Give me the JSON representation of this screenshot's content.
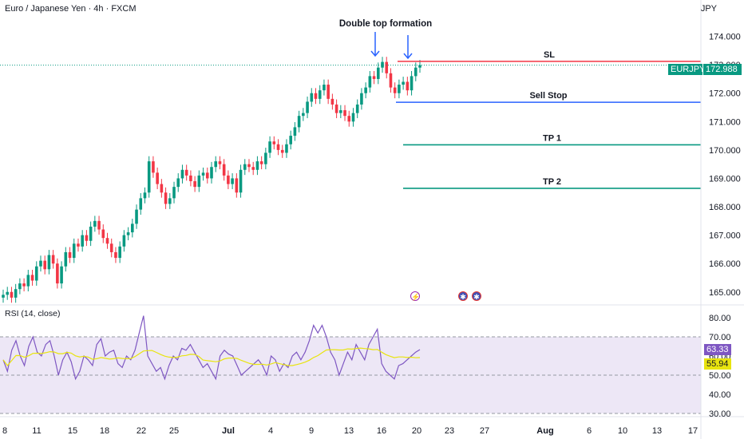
{
  "header": {
    "symbol_title": "Euro / Japanese Yen · 4h · FXCM",
    "currency": "JPY"
  },
  "rsi": {
    "title": "RSI (14, close)",
    "value_label": "63.33",
    "ma_label": "55.94",
    "y_ticks": [
      "80.00",
      "70.00",
      "60.00",
      "50.00",
      "40.00",
      "30.00"
    ],
    "upper_band": 70,
    "lower_band": 30,
    "middle_band": 50
  },
  "price_tags": {
    "symbol": "EURJPY",
    "last": "172.988"
  },
  "events": {
    "bolt": "⚡",
    "flag1": "✱",
    "flag2": "✱"
  },
  "colors": {
    "up": "#089981",
    "down": "#f23645",
    "sl_line": "#f23645",
    "sell_line": "#2962ff",
    "tp_line": "#089981",
    "arrow": "#2962ff",
    "rsi_line": "#7e57c2",
    "rsi_ma": "#e8e40f",
    "rsi_band_fill": "#ede7f6"
  },
  "chart_data": {
    "type": "candlestick",
    "timeframe": "4h",
    "y_axis_ticks": [
      174.0,
      173.0,
      172.0,
      171.0,
      170.0,
      169.0,
      168.0,
      167.0,
      166.0,
      165.0
    ],
    "y_axis_tick_labels": [
      "174.000",
      "173.000",
      "172.000",
      "171.000",
      "170.000",
      "169.000",
      "168.000",
      "167.000",
      "166.000",
      "165.000"
    ],
    "ylim": [
      164.6,
      175.0
    ],
    "x_tick_labels": [
      "8",
      "11",
      "15",
      "18",
      "22",
      "25",
      "Jul",
      "4",
      "9",
      "13",
      "16",
      "20",
      "23",
      "27",
      "Aug",
      "6",
      "10",
      "13",
      "17"
    ],
    "last_price": 172.988,
    "closes": [
      164.9,
      165.0,
      164.8,
      165.1,
      165.3,
      165.2,
      165.6,
      165.4,
      165.9,
      166.1,
      165.8,
      166.3,
      166.0,
      165.3,
      165.9,
      166.4,
      166.2,
      166.7,
      166.6,
      167.0,
      166.8,
      167.3,
      167.5,
      167.2,
      166.9,
      166.7,
      166.4,
      166.2,
      166.6,
      167.0,
      167.1,
      167.4,
      167.9,
      168.3,
      168.5,
      169.6,
      169.2,
      168.8,
      168.5,
      168.1,
      168.3,
      168.7,
      169.0,
      169.3,
      169.1,
      168.9,
      168.7,
      169.1,
      169.2,
      169.0,
      169.4,
      169.6,
      169.5,
      169.1,
      168.8,
      169.0,
      168.5,
      169.3,
      169.5,
      169.4,
      169.3,
      169.6,
      169.5,
      169.9,
      170.3,
      170.2,
      170.0,
      169.9,
      170.2,
      170.5,
      170.8,
      171.2,
      171.3,
      171.7,
      172.0,
      171.8,
      172.1,
      172.3,
      171.8,
      171.6,
      171.3,
      171.4,
      171.2,
      171.0,
      171.3,
      171.6,
      172.0,
      172.2,
      172.6,
      172.5,
      172.9,
      173.1,
      172.7,
      172.2,
      172.0,
      172.3,
      172.4,
      172.1,
      172.6,
      172.9,
      172.988
    ],
    "annotations": [
      {
        "type": "text",
        "label": "Double top formation"
      },
      {
        "type": "hline",
        "label": "SL",
        "price": 173.12
      },
      {
        "type": "hline",
        "label": "Sell Stop",
        "price": 171.68
      },
      {
        "type": "hline",
        "label": "TP 1",
        "price": 170.18
      },
      {
        "type": "hline",
        "label": "TP 2",
        "price": 168.65
      }
    ],
    "rsi_values": [
      58,
      52,
      63,
      68,
      60,
      55,
      65,
      70,
      62,
      60,
      66,
      68,
      60,
      50,
      58,
      62,
      57,
      48,
      52,
      60,
      58,
      55,
      66,
      69,
      60,
      62,
      63,
      56,
      54,
      60,
      58,
      63,
      72,
      81,
      60,
      56,
      52,
      54,
      48,
      55,
      60,
      58,
      64,
      63,
      66,
      62,
      58,
      54,
      56,
      52,
      48,
      60,
      63,
      61,
      60,
      55,
      50,
      52,
      54,
      56,
      58,
      55,
      50,
      60,
      58,
      52,
      56,
      54,
      60,
      62,
      58,
      62,
      68,
      76,
      72,
      76,
      70,
      62,
      58,
      50,
      56,
      62,
      58,
      66,
      62,
      58,
      66,
      70,
      74,
      56,
      52,
      50,
      48,
      55,
      56,
      58,
      60,
      62,
      63.33
    ],
    "rsi_ylim": [
      30,
      80
    ]
  }
}
